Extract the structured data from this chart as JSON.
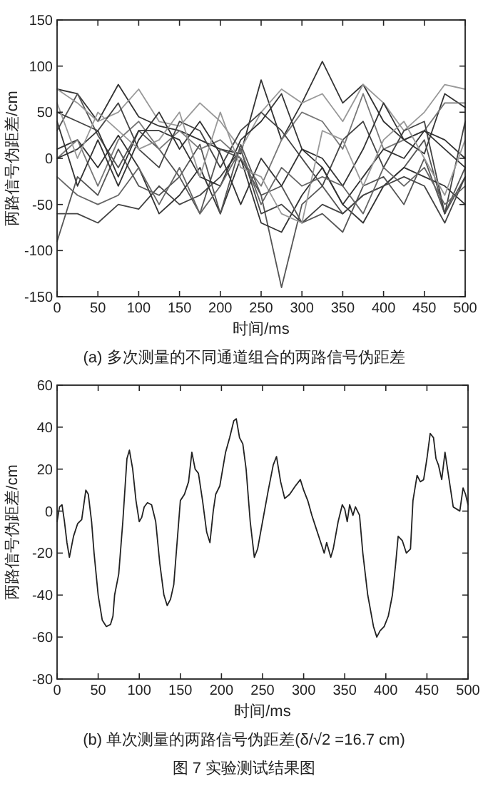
{
  "chart_data": [
    {
      "type": "line",
      "xlabel": "时间/ms",
      "ylabel": "两路信号伪距差/cm",
      "annotations": [
        "(a) 多次测量的不同通道组合的两路信号伪距差"
      ],
      "xlim": [
        0,
        500
      ],
      "ylim": [
        -150,
        150
      ],
      "xticks": [
        0,
        50,
        100,
        150,
        200,
        250,
        300,
        350,
        400,
        450,
        500
      ],
      "yticks": [
        -150,
        -100,
        -50,
        0,
        50,
        100,
        150
      ],
      "grid": false,
      "line_style": "solid",
      "x": [
        0,
        25,
        50,
        75,
        100,
        125,
        150,
        175,
        200,
        225,
        250,
        275,
        300,
        325,
        350,
        375,
        400,
        425,
        450,
        475,
        500
      ],
      "series": [
        {
          "color": "#333333",
          "values": [
            75,
            70,
            40,
            80,
            45,
            35,
            30,
            20,
            10,
            5,
            85,
            20,
            60,
            105,
            60,
            80,
            40,
            20,
            5,
            70,
            55
          ]
        },
        {
          "color": "#555555",
          "values": [
            30,
            70,
            25,
            -10,
            30,
            10,
            -20,
            -60,
            10,
            0,
            -40,
            -140,
            -50,
            -30,
            -60,
            -40,
            -30,
            -10,
            20,
            -60,
            -20
          ]
        },
        {
          "color": "#999999",
          "values": [
            75,
            60,
            40,
            50,
            75,
            40,
            35,
            60,
            40,
            10,
            50,
            75,
            60,
            70,
            40,
            80,
            60,
            30,
            50,
            80,
            75
          ]
        },
        {
          "color": "#333333",
          "values": [
            10,
            20,
            -10,
            25,
            -10,
            -60,
            -40,
            -10,
            -60,
            0,
            -70,
            -80,
            -40,
            -10,
            -50,
            -70,
            -30,
            -10,
            -20,
            -30,
            -50
          ]
        },
        {
          "color": "#444444",
          "values": [
            -60,
            -60,
            -70,
            -50,
            -55,
            -30,
            -50,
            -40,
            -20,
            10,
            -60,
            -50,
            -70,
            -50,
            -60,
            -40,
            -30,
            -20,
            -30,
            -70,
            -20
          ]
        },
        {
          "color": "#555555",
          "values": [
            -90,
            -20,
            -40,
            10,
            -30,
            -40,
            -20,
            15,
            -60,
            15,
            -40,
            -30,
            -70,
            -60,
            -80,
            -30,
            -20,
            -50,
            0,
            -60,
            -10
          ]
        },
        {
          "color": "#777777",
          "values": [
            0,
            20,
            -30,
            20,
            40,
            10,
            30,
            10,
            20,
            0,
            -30,
            20,
            50,
            40,
            10,
            70,
            10,
            20,
            30,
            60,
            60
          ]
        },
        {
          "color": "#333333",
          "values": [
            0,
            10,
            30,
            -20,
            30,
            30,
            20,
            -20,
            -30,
            20,
            40,
            70,
            10,
            -10,
            -50,
            -20,
            10,
            0,
            30,
            20,
            0
          ]
        },
        {
          "color": "#444444",
          "values": [
            50,
            40,
            30,
            60,
            10,
            -10,
            40,
            30,
            -10,
            30,
            50,
            30,
            0,
            -30,
            20,
            40,
            -10,
            30,
            40,
            -60,
            40
          ]
        },
        {
          "color": "#333333",
          "values": [
            40,
            -30,
            20,
            -30,
            20,
            50,
            10,
            40,
            5,
            -50,
            0,
            -30,
            10,
            0,
            -30,
            10,
            60,
            20,
            30,
            10,
            -10
          ]
        },
        {
          "color": "#999999",
          "values": [
            60,
            0,
            50,
            30,
            10,
            20,
            50,
            -20,
            50,
            -10,
            -20,
            -60,
            -70,
            30,
            20,
            -30,
            20,
            40,
            0,
            -40,
            20
          ]
        },
        {
          "color": "#666666",
          "values": [
            -20,
            -40,
            -50,
            -40,
            -10,
            -50,
            -10,
            -60,
            -30,
            10,
            -50,
            -10,
            -30,
            -20,
            -30,
            -60,
            -10,
            -30,
            -10,
            -50,
            -30
          ]
        }
      ]
    },
    {
      "type": "line",
      "xlabel": "时间/ms",
      "ylabel": "两路信号伪距差/cm",
      "annotations": [
        "(b) 单次测量的两路信号伪距差(δ/√2 =16.7 cm)",
        "图 7 实验测试结果图"
      ],
      "xlim": [
        0,
        500
      ],
      "ylim": [
        -80,
        60
      ],
      "xticks": [
        0,
        50,
        100,
        150,
        200,
        250,
        300,
        350,
        400,
        450,
        500
      ],
      "yticks": [
        -80,
        -60,
        -40,
        -20,
        0,
        20,
        40,
        60
      ],
      "grid": false,
      "line_style": "solid",
      "x": [
        0,
        3,
        6,
        9,
        12,
        15,
        20,
        25,
        30,
        35,
        38,
        42,
        45,
        50,
        55,
        60,
        65,
        68,
        70,
        75,
        80,
        85,
        88,
        92,
        96,
        100,
        103,
        106,
        110,
        115,
        120,
        125,
        130,
        134,
        138,
        142,
        145,
        150,
        155,
        160,
        164,
        168,
        172,
        177,
        182,
        186,
        190,
        193,
        198,
        205,
        210,
        215,
        218,
        222,
        226,
        230,
        235,
        240,
        244,
        250,
        257,
        263,
        267,
        272,
        277,
        283,
        290,
        296,
        300,
        305,
        310,
        315,
        320,
        325,
        328,
        333,
        336,
        342,
        347,
        350,
        353,
        356,
        360,
        363,
        368,
        372,
        378,
        385,
        389,
        393,
        398,
        403,
        408,
        412,
        415,
        420,
        425,
        430,
        433,
        438,
        442,
        446,
        450,
        454,
        458,
        461,
        464,
        468,
        472,
        477,
        482,
        486,
        490,
        494,
        497,
        500
      ],
      "series": [
        {
          "color": "#222222",
          "values": [
            -5,
            2,
            3,
            -5,
            -15,
            -22,
            -12,
            -6,
            -4,
            10,
            8,
            -5,
            -20,
            -40,
            -52,
            -55,
            -54,
            -50,
            -40,
            -30,
            -5,
            25,
            29,
            20,
            5,
            -5,
            -3,
            2,
            4,
            3,
            -5,
            -25,
            -40,
            -45,
            -42,
            -35,
            -20,
            5,
            8,
            14,
            28,
            20,
            18,
            5,
            -10,
            -15,
            0,
            8,
            12,
            28,
            35,
            43,
            44,
            35,
            32,
            20,
            -5,
            -22,
            -18,
            -5,
            10,
            22,
            26,
            14,
            6,
            8,
            12,
            15,
            10,
            5,
            -2,
            -8,
            -14,
            -20,
            -15,
            -22,
            -18,
            -5,
            3,
            1,
            -5,
            3,
            -2,
            2,
            -2,
            -20,
            -40,
            -55,
            -60,
            -57,
            -55,
            -50,
            -40,
            -25,
            -12,
            -14,
            -20,
            -18,
            5,
            17,
            14,
            15,
            25,
            37,
            35,
            25,
            22,
            15,
            28,
            15,
            2,
            1,
            0,
            11,
            8,
            3
          ]
        }
      ]
    }
  ]
}
